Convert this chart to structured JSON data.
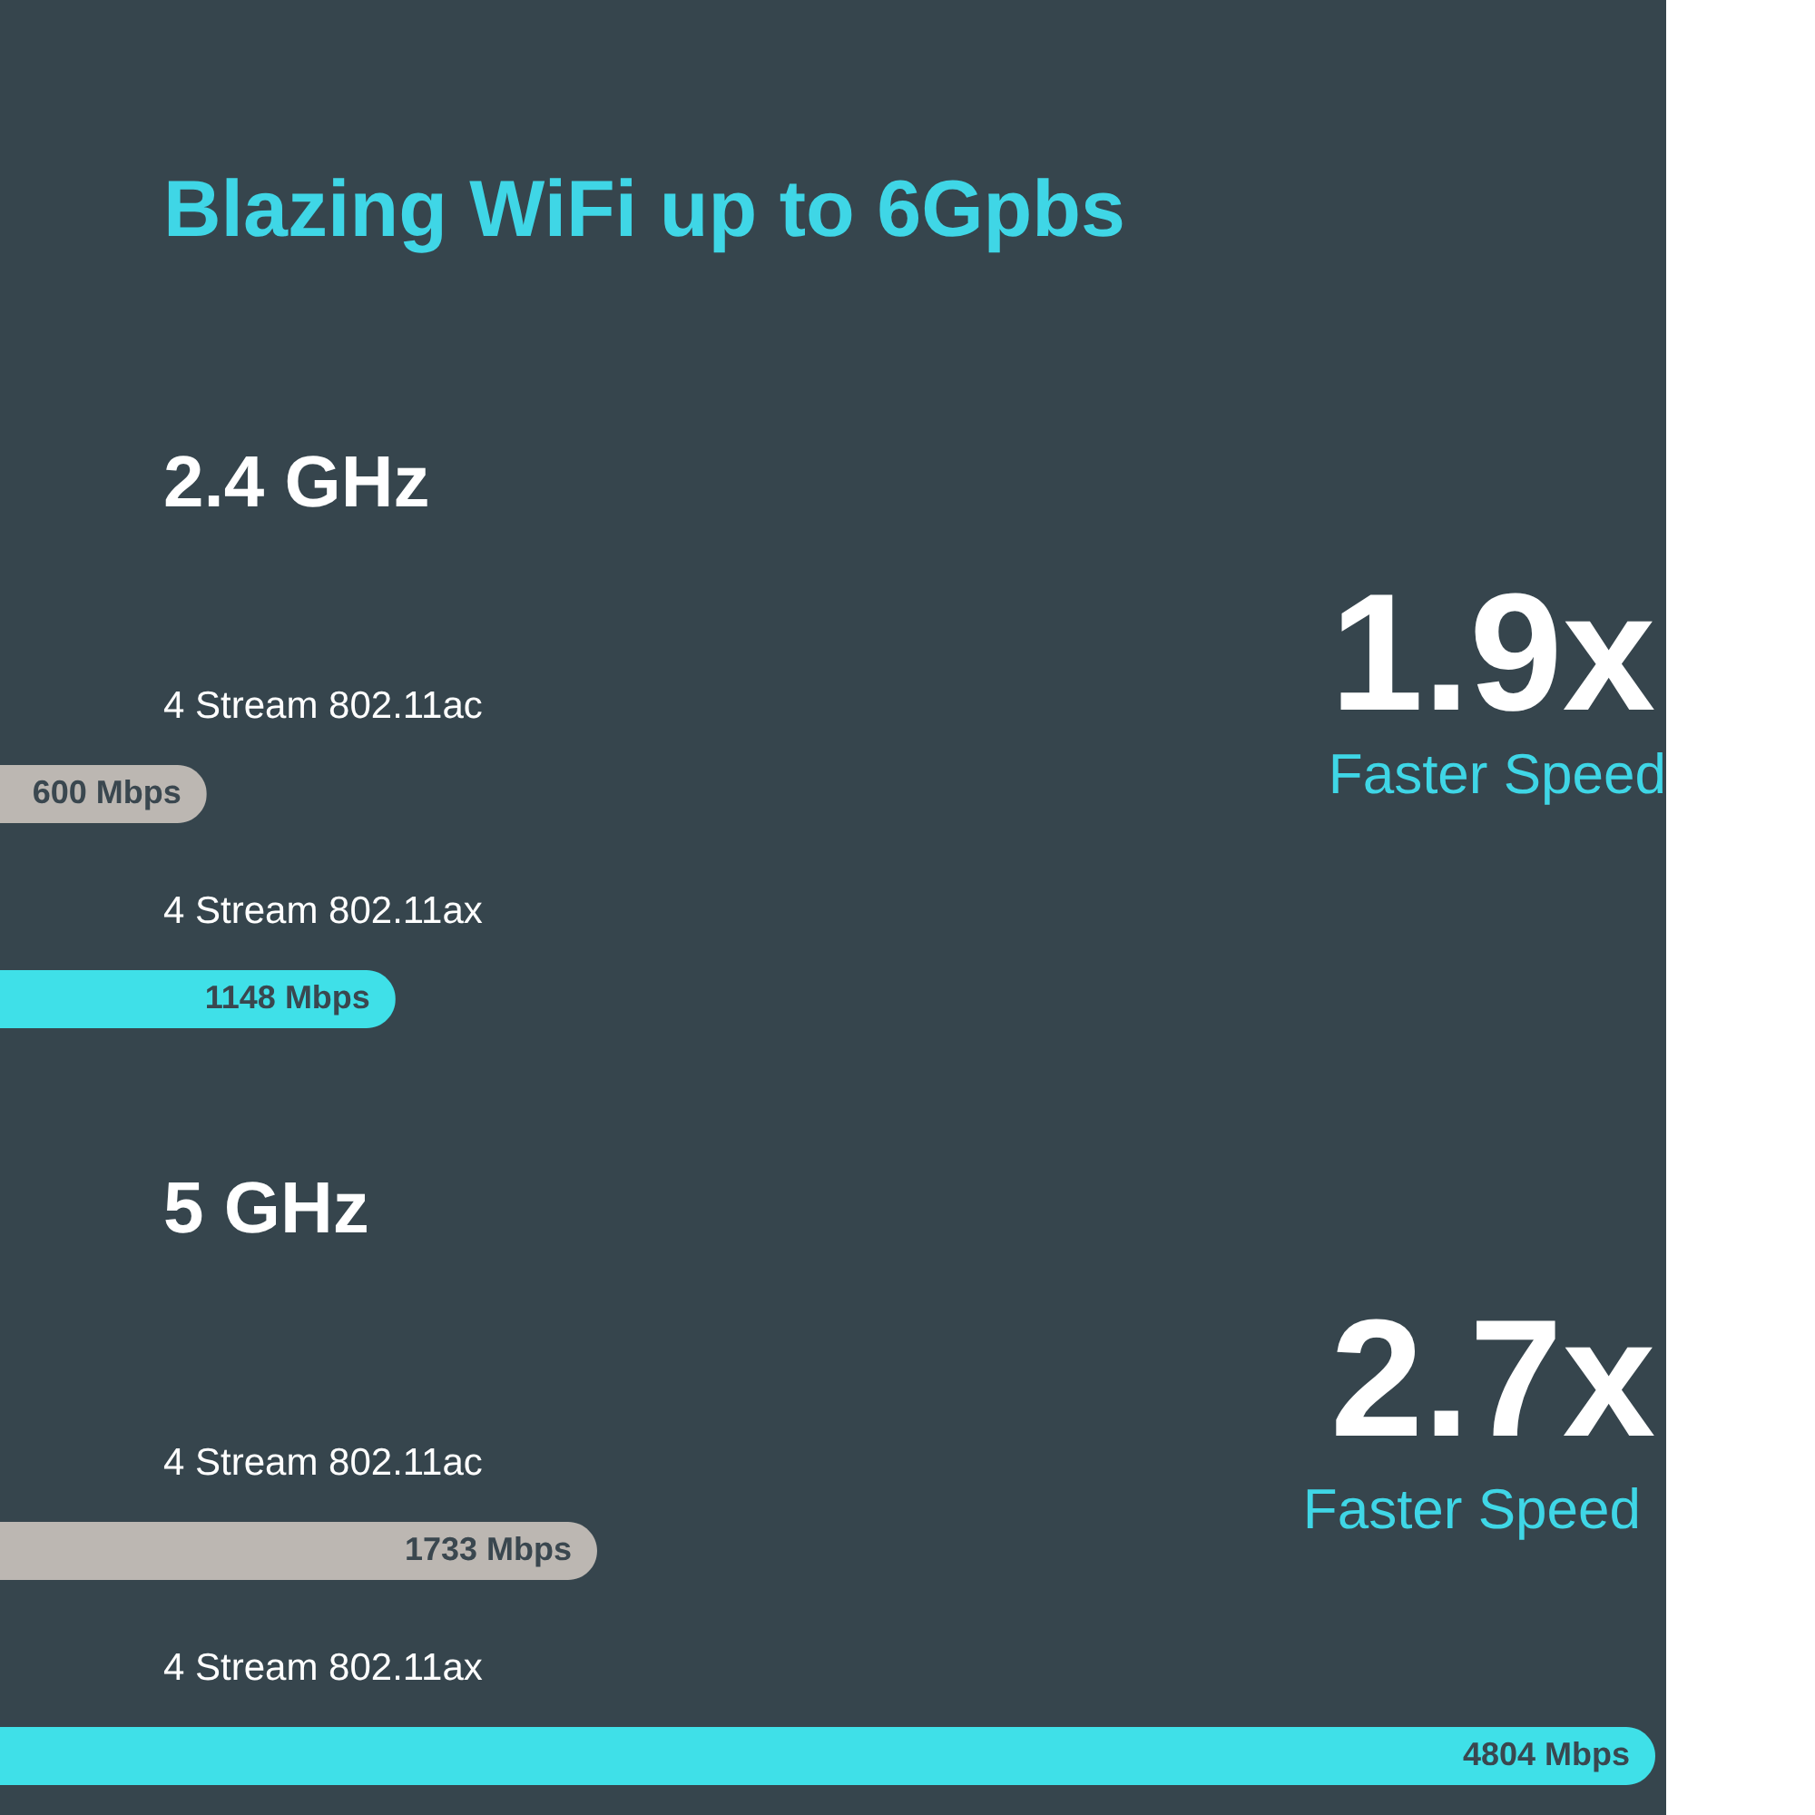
{
  "chart_data": [
    {
      "type": "bar",
      "orientation": "horizontal",
      "title": "Blazing WiFi up to 6Gpbs",
      "subtitle": "2.4 GHz",
      "categories": [
        "4 Stream 802.11ac",
        "4 Stream 802.11ax"
      ],
      "values": [
        600,
        1148
      ],
      "colors": [
        "#bcb7b2",
        "#3fe0e8"
      ],
      "value_labels": [
        "600 Mbps",
        "1148 Mbps"
      ],
      "annotations": [
        "1.9x",
        "Faster Speed"
      ]
    },
    {
      "type": "bar",
      "orientation": "horizontal",
      "title": "5 GHz",
      "categories": [
        "4 Stream 802.11ac",
        "4 Stream 802.11ax"
      ],
      "values": [
        1733,
        4804
      ],
      "colors": [
        "#bcb7b2",
        "#3fe0e8"
      ],
      "value_labels": [
        "1733 Mbps",
        "4804 Mbps"
      ],
      "annotations": [
        "2.7x",
        "Faster Speed"
      ]
    }
  ]
}
